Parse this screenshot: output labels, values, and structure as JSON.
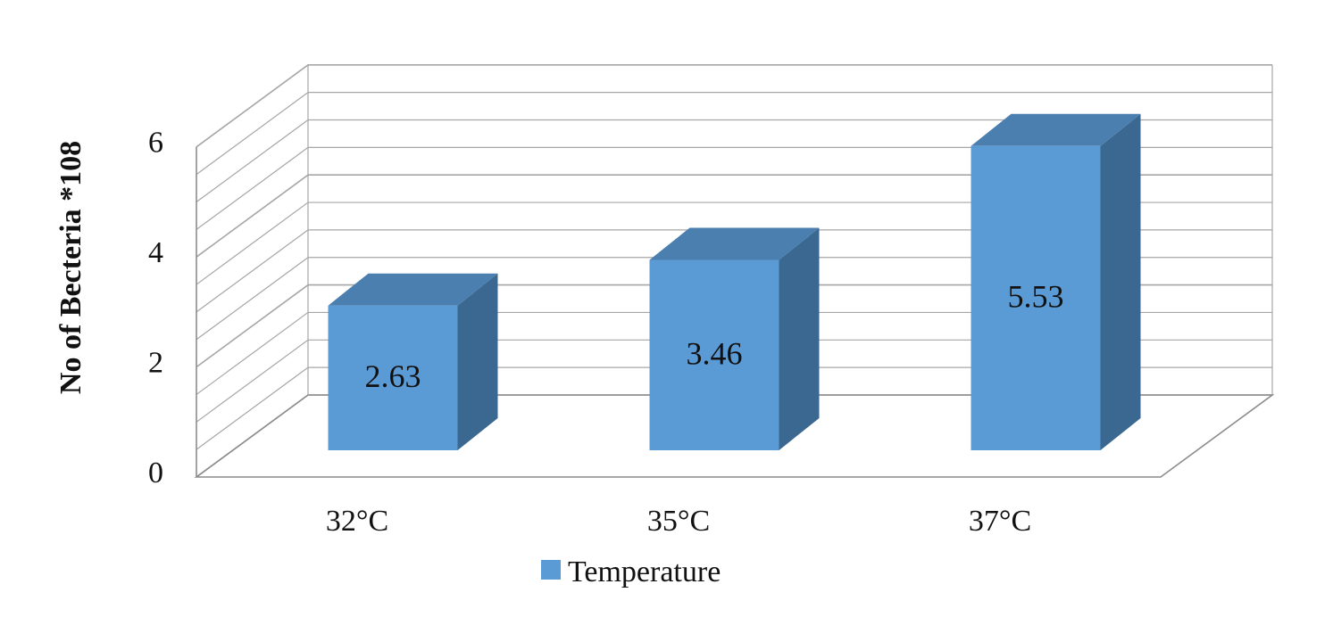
{
  "chart_data": {
    "type": "bar",
    "style": "3d-column",
    "categories": [
      "32°C",
      "35°C",
      "37°C"
    ],
    "series": [
      {
        "name": "Temperature",
        "values": [
          2.63,
          3.46,
          5.53
        ]
      }
    ],
    "data_labels": [
      "2.63",
      "3.46",
      "5.53"
    ],
    "ylabel": "No of Becteria *108",
    "xlabel": "",
    "ylim": [
      0,
      6
    ],
    "yticks": [
      "0",
      "2",
      "4",
      "6"
    ],
    "grid": true,
    "legend": {
      "position": "bottom",
      "entries": [
        "Temperature"
      ]
    },
    "colors": {
      "front": "#5b9bd5",
      "top": "#4a7fb0",
      "side": "#3a6891",
      "grid": "#a6a6a6",
      "axis": "#8c8c8c"
    }
  }
}
